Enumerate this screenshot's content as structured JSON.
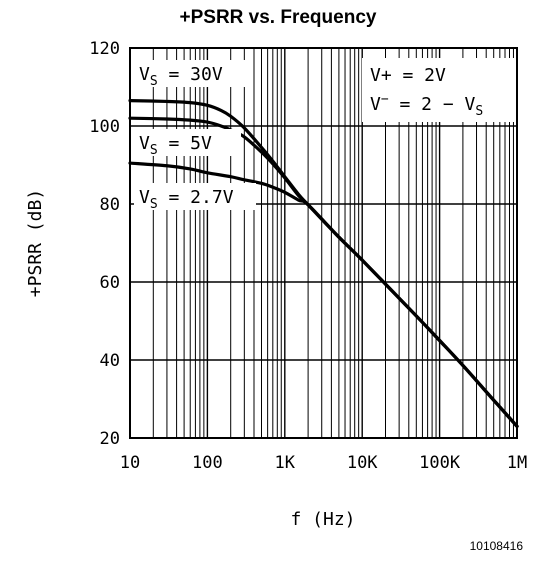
{
  "chart_data": {
    "type": "line",
    "title": "+PSRR vs. Frequency",
    "xlabel": "f (Hz)",
    "ylabel": "+PSRR (dB)",
    "x_scale": "log",
    "xlim": [
      10,
      1000000
    ],
    "ylim": [
      20,
      120
    ],
    "x_tick_values": [
      10,
      100,
      1000,
      10000,
      100000,
      1000000
    ],
    "x_tick_labels": [
      "10",
      "100",
      "1K",
      "10K",
      "100K",
      "1M"
    ],
    "y_tick_values": [
      20,
      40,
      60,
      80,
      100,
      120
    ],
    "y_tick_labels": [
      "20",
      "40",
      "60",
      "80",
      "100",
      "120"
    ],
    "grid": true,
    "series": [
      {
        "name": "VS = 30V",
        "x": [
          10,
          30,
          60,
          100,
          150,
          200,
          300,
          500,
          700,
          1000,
          1500,
          2000,
          5000,
          10000,
          50000,
          100000,
          200000,
          500000,
          1000000
        ],
        "y": [
          106.5,
          106.3,
          106,
          105.3,
          104,
          102.5,
          99.5,
          94.5,
          91,
          87,
          82.5,
          79.8,
          71.5,
          65.6,
          51.3,
          45,
          38.6,
          29.7,
          23
        ]
      },
      {
        "name": "VS = 5V",
        "x": [
          10,
          30,
          60,
          100,
          150,
          200,
          300,
          500,
          700,
          1000,
          1500,
          2000,
          5000,
          10000,
          50000,
          100000,
          200000,
          500000,
          1000000
        ],
        "y": [
          102,
          101.8,
          101.5,
          101,
          100,
          99,
          97.2,
          93.3,
          90.3,
          86.7,
          82.2,
          79.8,
          71.5,
          65.6,
          51.3,
          45,
          38.6,
          29.7,
          23
        ]
      },
      {
        "name": "VS = 2.7V",
        "x": [
          10,
          30,
          60,
          100,
          200,
          300,
          500,
          700,
          1000,
          1500,
          2000,
          5000,
          10000,
          50000,
          100000,
          200000,
          500000,
          1000000
        ],
        "y": [
          90.5,
          89.8,
          89,
          88,
          87,
          86.2,
          85.3,
          84.3,
          83,
          81,
          79.8,
          71.5,
          65.6,
          51.3,
          45,
          38.6,
          29.7,
          23
        ]
      }
    ],
    "curve_labels": [
      {
        "main": "V",
        "sub": "S",
        "rest": " = 30V"
      },
      {
        "main": "V",
        "sub": "S",
        "rest": " = 5V"
      },
      {
        "main": "V",
        "sub": "S",
        "rest": " = 2.7V"
      }
    ],
    "conditions": {
      "line1": "V+ = 2V",
      "line2_main": "V",
      "line2_sup": "−",
      "line2_rest": " = 2 − V",
      "line2_sub": "S"
    },
    "figure_id": "10108416",
    "line_color": "#000000"
  }
}
